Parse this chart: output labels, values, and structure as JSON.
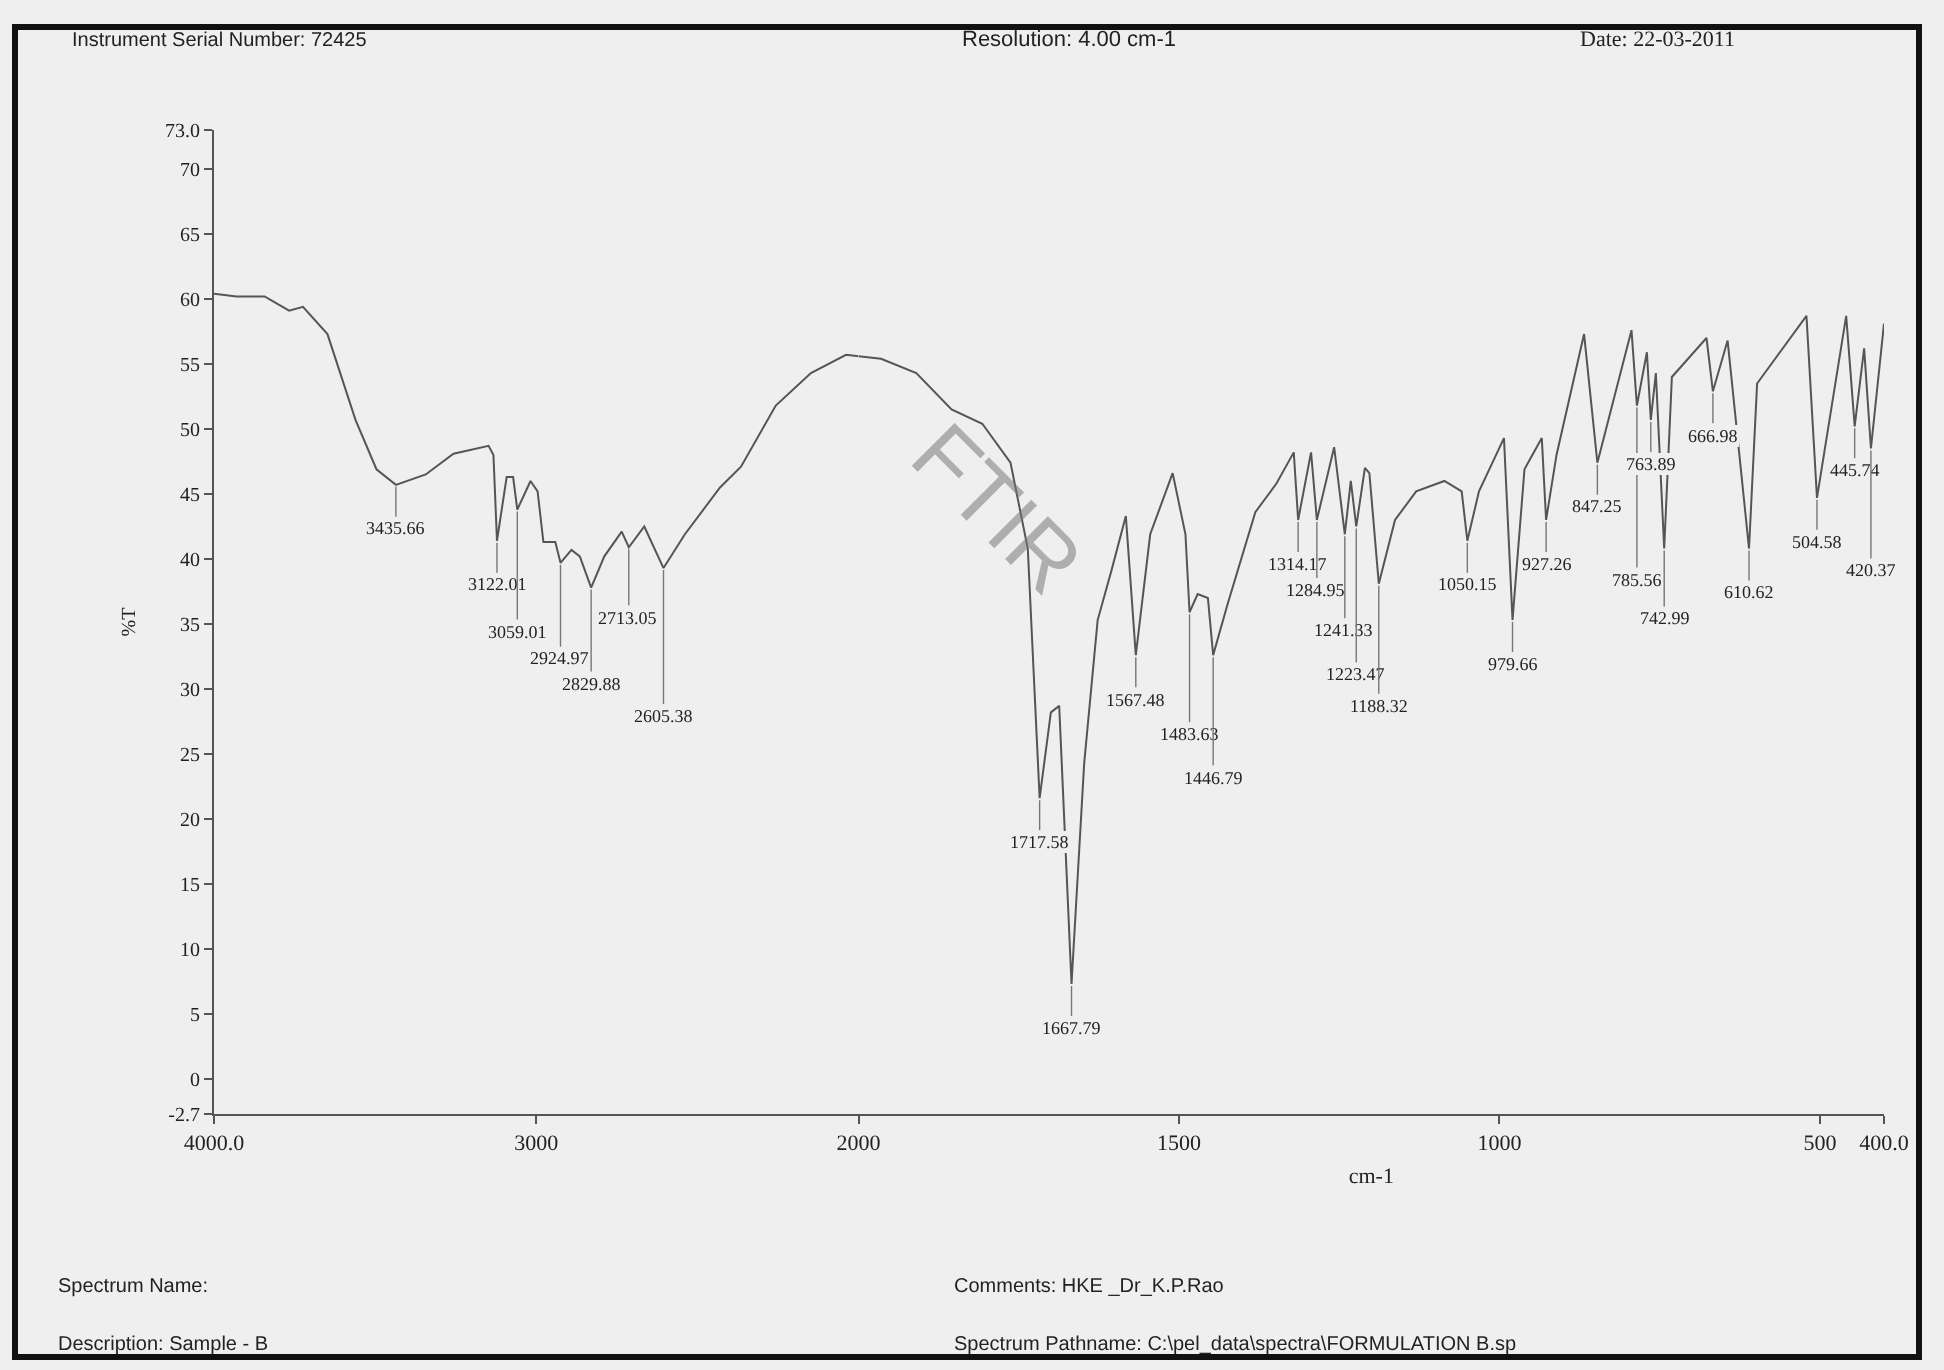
{
  "chart_data": [
    {
      "type": "line",
      "color": "#555555",
      "xlabel": null,
      "ylabel": "%T",
      "x": [
        4000,
        3930,
        3843,
        3767,
        3724,
        3648,
        3561,
        3496,
        3435.66,
        3343,
        3257,
        3148,
        3133,
        3122.01,
        3092,
        3072,
        3059.01,
        3018,
        2996,
        2978,
        2941,
        2924.97,
        2891,
        2865,
        2829.88,
        2789,
        2735,
        2713.05,
        2665,
        2605.38,
        2539,
        2430,
        2365,
        2257,
        2148,
        2039,
        2000
      ],
      "values": [
        60.4,
        60.2,
        60.2,
        59.1,
        59.4,
        57.3,
        50.7,
        46.9,
        45.7,
        46.5,
        48.1,
        48.7,
        48,
        41.4,
        46.3,
        46.3,
        43.8,
        46,
        45.2,
        41.3,
        41.3,
        39.7,
        40.7,
        40.2,
        37.8,
        40.2,
        42.1,
        40.9,
        42.5,
        39.3,
        41.9,
        45.5,
        47.1,
        51.8,
        54.3,
        55.7,
        55.6
      ],
      "xlim": [
        4000,
        2000
      ],
      "xticks": [
        {
          "value": 4000,
          "label": "4000.0"
        },
        3000,
        2000
      ],
      "ylim": [
        -2.7,
        73
      ],
      "yticks": [
        {
          "value": -2.7,
          "label": "-2.7"
        },
        0,
        5,
        10,
        15,
        20,
        25,
        30,
        35,
        40,
        45,
        50,
        55,
        60,
        65,
        70,
        {
          "value": 73,
          "label": "73.0"
        }
      ],
      "annotations": [
        "Instrument Serial Number: 72425",
        "Resolution: 4.00 cm-1",
        "Date: 22-03-2011",
        "Spectrum Name:",
        "Comments: HKE _Dr_K.P.Rao",
        "Description: Sample - B",
        "Spectrum Pathname: C:\\pel_data\\spectra\\FORMULATION B.sp",
        "FTIR",
        {
          "text": "3435.66",
          "x": 3435.66,
          "y": 45.7
        },
        {
          "text": "3122.01",
          "x": 3122.01,
          "y": 41.4
        },
        {
          "text": "3059.01",
          "x": 3059.01,
          "y": 43.8
        },
        {
          "text": "2924.97",
          "x": 2924.97,
          "y": 39.7
        },
        {
          "text": "2829.88",
          "x": 2829.88,
          "y": 37.8
        },
        {
          "text": "2713.05",
          "x": 2713.05,
          "y": 40.9
        },
        {
          "text": "2605.38",
          "x": 2605.38,
          "y": 39.3
        }
      ]
    },
    {
      "type": "line",
      "color": "#555555",
      "xlabel": "cm-1",
      "tick_labels": "x",
      "x": [
        2000,
        1965,
        1910,
        1855,
        1807,
        1763,
        1736,
        1717.58,
        1700,
        1687,
        1667.79,
        1648,
        1627,
        1605,
        1583,
        1567.48,
        1545,
        1510,
        1490,
        1483.63,
        1471,
        1455,
        1446.79,
        1425,
        1381,
        1348,
        1321,
        1314.17,
        1294,
        1284.95,
        1258,
        1241.33,
        1232,
        1223.47,
        1210,
        1203,
        1188.32,
        1163,
        1130,
        1086,
        1059,
        1050.15,
        1032,
        993,
        979.66,
        961,
        934,
        927.26,
        911,
        868,
        847.25,
        794,
        785.56,
        770,
        763.89,
        756,
        742.99,
        731,
        677,
        666.98,
        644,
        610.62,
        598,
        521,
        504.58,
        459,
        445.74,
        431,
        420.37,
        400
      ],
      "values": [
        55.6,
        55.4,
        54.3,
        51.5,
        50.4,
        47.4,
        40.8,
        21.6,
        28.2,
        28.7,
        7.3,
        24.3,
        35.3,
        39.2,
        43.3,
        32.6,
        41.9,
        46.6,
        41.9,
        35.9,
        37.3,
        37,
        32.6,
        36.4,
        43.6,
        45.8,
        48.2,
        43,
        48.2,
        43,
        48.6,
        41.9,
        46,
        42.5,
        47,
        46.6,
        38.1,
        43,
        45.2,
        46,
        45.2,
        41.4,
        45.2,
        49.3,
        35.3,
        46.9,
        49.3,
        43,
        48,
        57.3,
        47.4,
        57.6,
        51.8,
        55.9,
        50.7,
        54.3,
        40.8,
        54,
        57,
        52.9,
        56.8,
        40.8,
        53.5,
        58.7,
        44.7,
        58.7,
        50.2,
        56.2,
        48.5,
        58.1
      ],
      "xlim": [
        2000,
        400
      ],
      "xticks": [
        1500,
        1000,
        500,
        {
          "value": 400,
          "label": "400.0"
        }
      ],
      "ylim": [
        -2.7,
        73
      ],
      "annotations": [
        {
          "text": "1717.58",
          "x": 1717.58,
          "y": 21.6
        },
        {
          "text": "1667.79",
          "x": 1667.79,
          "y": 7.3
        },
        {
          "text": "1567.48",
          "x": 1567.48,
          "y": 32.6
        },
        {
          "text": "1483.63",
          "x": 1483.63,
          "y": 35.9
        },
        {
          "text": "1446.79",
          "x": 1446.79,
          "y": 32.6
        },
        {
          "text": "1314.17",
          "x": 1314.17,
          "y": 43
        },
        {
          "text": "1284.95",
          "x": 1284.95,
          "y": 43
        },
        {
          "text": "1241.33",
          "x": 1241.33,
          "y": 41.9
        },
        {
          "text": "1223.47",
          "x": 1223.47,
          "y": 42.5
        },
        {
          "text": "1188.32",
          "x": 1188.32,
          "y": 38.1
        },
        {
          "text": "1050.15",
          "x": 1050.15,
          "y": 41.4
        },
        {
          "text": "979.66",
          "x": 979.66,
          "y": 35.3
        },
        {
          "text": "927.26",
          "x": 927.26,
          "y": 43
        },
        {
          "text": "847.25",
          "x": 847.25,
          "y": 47.4
        },
        {
          "text": "785.56",
          "x": 785.56,
          "y": 51.8
        },
        {
          "text": "763.89",
          "x": 763.89,
          "y": 50.7
        },
        {
          "text": "742.99",
          "x": 742.99,
          "y": 40.8
        },
        {
          "text": "666.98",
          "x": 666.98,
          "y": 52.9
        },
        {
          "text": "610.62",
          "x": 610.62,
          "y": 40.8
        },
        {
          "text": "504.58",
          "x": 504.58,
          "y": 44.7
        },
        {
          "text": "445.74",
          "x": 445.74,
          "y": 50.2
        },
        {
          "text": "420.37",
          "x": 420.37,
          "y": 48.5
        }
      ]
    }
  ]
}
